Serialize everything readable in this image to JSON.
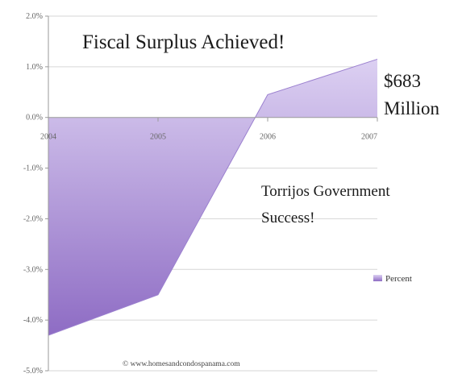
{
  "chart_data": {
    "type": "area",
    "title": "Fiscal Surplus Achieved!",
    "x": [
      "2004",
      "2005",
      "2006",
      "2007"
    ],
    "series": [
      {
        "name": "Percent",
        "values": [
          -4.3,
          -3.5,
          0.45,
          1.15
        ]
      }
    ],
    "ylim": [
      -5.0,
      2.0
    ],
    "yticks": [
      "2.0%",
      "1.0%",
      "0.0%",
      "-1.0%",
      "-2.0%",
      "-3.0%",
      "-4.0%",
      "-5.0%"
    ],
    "ytick_values": [
      2,
      1,
      0,
      -1,
      -2,
      -3,
      -4,
      -5
    ],
    "grid": true,
    "legend_position": "right",
    "annotations": {
      "amount_value": "$683",
      "amount_unit": "Million",
      "success_line1": "Torrijos Government",
      "success_line2": "Success!",
      "credit": "© www.homesandcondospanama.com"
    },
    "colors": {
      "area_top": "#dcd0f2",
      "area_bottom": "#8e6cc4",
      "grid": "#d6d6d6",
      "axis": "#9a9a9a"
    }
  }
}
